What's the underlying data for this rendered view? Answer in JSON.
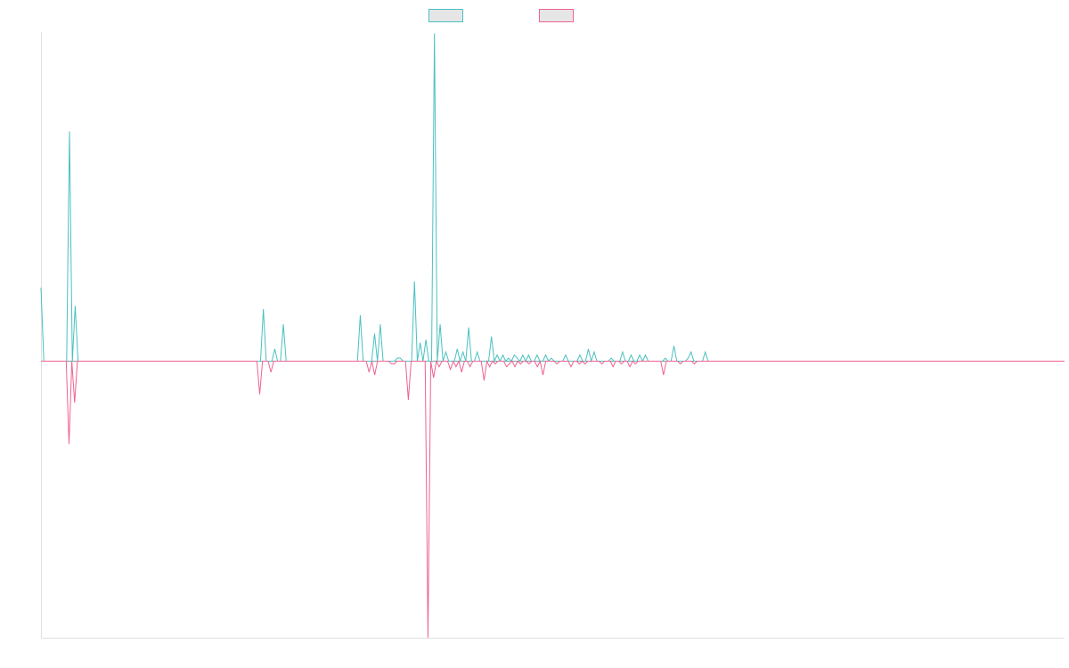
{
  "chart_data": {
    "type": "line",
    "title": "",
    "xlabel": "",
    "ylabel": "",
    "ylim": [
      -1,
      0.87
    ],
    "grid": false,
    "legend": {
      "placement": "top-center",
      "entries": [
        {
          "color": "#4bc0c0",
          "fill": "#e6e6e6"
        },
        {
          "color": "#f06292",
          "fill": "#e6e6e6"
        }
      ]
    },
    "series": [
      {
        "color": "#4bc0c0",
        "values": [
          0.24,
          0,
          0,
          0,
          0,
          0,
          0,
          0,
          0,
          0,
          0.75,
          0,
          0.18,
          0,
          0,
          0,
          0,
          0,
          0,
          0,
          0,
          0,
          0,
          0,
          0,
          0,
          0,
          0,
          0,
          0,
          0,
          0,
          0,
          0,
          0,
          0,
          0,
          0,
          0,
          0,
          0,
          0,
          0,
          0,
          0,
          0,
          0,
          0,
          0,
          0,
          0,
          0,
          0,
          0,
          0,
          0,
          0,
          0,
          0,
          0,
          0,
          0,
          0,
          0,
          0,
          0,
          0,
          0,
          0,
          0,
          0,
          0,
          0,
          0,
          0,
          0,
          0,
          0,
          0.17,
          0,
          0,
          0,
          0.04,
          0,
          0,
          0.12,
          0,
          0,
          0,
          0,
          0,
          0,
          0,
          0,
          0,
          0,
          0,
          0,
          0,
          0,
          0,
          0,
          0,
          0,
          0,
          0,
          0,
          0,
          0,
          0,
          0,
          0,
          0.15,
          0,
          0,
          0,
          0,
          0.09,
          0,
          0.12,
          0,
          0,
          0,
          0,
          0,
          0.01,
          0.01,
          0,
          0,
          0,
          0,
          0.26,
          0,
          0.06,
          0,
          0.07,
          0,
          0,
          1.07,
          0,
          0.12,
          0,
          0.03,
          0,
          0,
          0,
          0.04,
          0,
          0.03,
          0,
          0.11,
          0,
          0,
          0.03,
          0,
          0,
          0,
          0,
          0.08,
          0,
          0.02,
          0,
          0.02,
          0,
          0.01,
          0,
          0.02,
          0.01,
          0,
          0.02,
          0,
          0.02,
          0,
          0,
          0.02,
          0,
          0,
          0.02,
          0,
          0.01,
          0,
          0,
          0,
          0,
          0.02,
          0,
          0,
          0,
          0,
          0.02,
          0,
          0,
          0.04,
          0,
          0.03,
          0,
          0,
          0,
          0,
          0,
          0.01,
          0,
          0,
          0,
          0.03,
          0,
          0,
          0.02,
          0,
          0,
          0.02,
          0,
          0.02,
          0,
          0,
          0,
          0,
          0,
          0,
          0.01,
          0,
          0,
          0.05,
          0,
          0,
          0,
          0,
          0.01,
          0.03,
          0,
          0,
          0,
          0,
          0.03,
          0,
          0,
          0,
          0,
          0,
          0,
          0,
          0,
          0,
          0,
          0,
          0,
          0,
          0,
          0,
          0,
          0,
          0,
          0,
          0,
          0,
          0,
          0,
          0,
          0,
          0,
          0,
          0,
          0,
          0,
          0,
          0,
          0,
          0,
          0,
          0,
          0,
          0,
          0,
          0,
          0,
          0,
          0,
          0,
          0,
          0,
          0,
          0,
          0,
          0,
          0,
          0,
          0,
          0,
          0,
          0,
          0,
          0,
          0,
          0,
          0,
          0,
          0,
          0,
          0,
          0,
          0,
          0,
          0,
          0,
          0,
          0,
          0,
          0,
          0,
          0,
          0,
          0,
          0,
          0,
          0,
          0,
          0,
          0,
          0,
          0,
          0,
          0,
          0,
          0,
          0,
          0,
          0,
          0,
          0,
          0,
          0,
          0,
          0,
          0,
          0,
          0,
          0,
          0,
          0,
          0,
          0,
          0,
          0,
          0,
          0,
          0,
          0,
          0,
          0,
          0,
          0,
          0,
          0,
          0,
          0,
          0,
          0,
          0,
          0,
          0
        ]
      },
      {
        "color": "#f06292",
        "values": [
          0,
          0,
          0,
          0,
          0,
          0,
          0,
          0,
          0,
          0,
          -0.3,
          0,
          -0.15,
          0,
          0,
          0,
          0,
          0,
          0,
          0,
          0,
          0,
          0,
          0,
          0,
          0,
          0,
          0,
          0,
          0,
          0,
          0,
          0,
          0,
          0,
          0,
          0,
          0,
          0,
          0,
          0,
          0,
          0,
          0,
          0,
          0,
          0,
          0,
          0,
          0,
          0,
          0,
          0,
          0,
          0,
          0,
          0,
          0,
          0,
          0,
          0,
          0,
          0,
          0,
          0,
          0,
          0,
          0,
          0,
          0,
          0,
          0,
          0,
          0,
          0,
          0,
          0,
          0,
          -0.12,
          0,
          0,
          0,
          -0.04,
          0,
          0,
          0,
          0,
          0,
          0,
          0,
          0,
          0,
          0,
          0,
          0,
          0,
          0,
          0,
          0,
          0,
          0,
          0,
          0,
          0,
          0,
          0,
          0,
          0,
          0,
          0,
          0,
          0,
          0,
          0,
          0,
          0,
          0,
          -0.04,
          0,
          -0.05,
          0,
          0,
          0,
          0,
          0,
          -0.01,
          -0.01,
          0,
          0,
          0,
          0,
          -0.14,
          0,
          0,
          0,
          0,
          0,
          0,
          -1.0,
          0,
          -0.06,
          0,
          -0.02,
          0,
          0,
          0,
          -0.03,
          0,
          -0.02,
          0,
          -0.04,
          0,
          0,
          -0.02,
          0,
          0,
          0,
          0,
          -0.07,
          0,
          -0.02,
          0,
          -0.01,
          0,
          0,
          0,
          -0.02,
          -0.01,
          0,
          -0.02,
          0,
          -0.01,
          0,
          0,
          -0.01,
          0,
          0,
          -0.02,
          0,
          -0.05,
          0,
          0,
          0,
          0,
          -0.01,
          0,
          0,
          0,
          0,
          -0.02,
          0,
          0,
          -0.01,
          0,
          -0.01,
          0,
          0,
          0,
          0,
          0,
          -0.01,
          0,
          0,
          0,
          -0.02,
          0,
          0,
          -0.01,
          0,
          0,
          -0.02,
          0,
          -0.01,
          0,
          0,
          0,
          0,
          0,
          0,
          0,
          0,
          0,
          -0.05,
          0,
          0,
          0,
          0,
          0,
          -0.01,
          0,
          0,
          0,
          0,
          -0.01,
          0,
          0,
          0,
          0,
          0,
          0,
          0,
          0,
          0,
          0,
          0,
          0,
          0,
          0,
          0,
          0,
          0,
          0,
          0,
          0,
          0,
          0,
          0,
          0,
          0,
          0,
          0,
          0,
          0,
          0,
          0,
          0,
          0,
          0,
          0,
          0,
          0,
          0,
          0,
          0,
          0,
          0,
          0,
          0,
          0,
          0,
          0,
          0,
          0,
          0,
          0,
          0,
          0,
          0,
          0,
          0,
          0,
          0,
          0,
          0,
          0,
          0,
          0,
          0,
          0,
          0,
          0,
          0,
          0,
          0,
          0,
          0,
          0,
          0,
          0,
          0,
          0,
          0,
          0,
          0,
          0,
          0,
          0,
          0,
          0,
          0,
          0,
          0,
          0,
          0,
          0,
          0,
          0,
          0,
          0,
          0,
          0,
          0,
          0,
          0,
          0,
          0,
          0,
          0,
          0,
          0,
          0,
          0,
          0,
          0,
          0,
          0,
          0,
          0,
          0,
          0,
          0,
          0,
          0,
          0,
          0,
          0,
          0,
          0,
          0,
          0,
          0,
          0,
          0,
          0,
          0,
          0
        ]
      }
    ]
  }
}
